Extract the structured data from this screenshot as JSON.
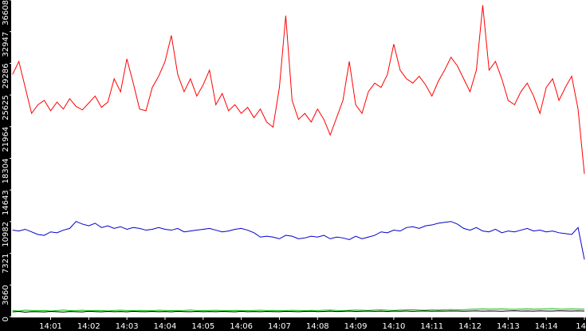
{
  "chart_data": {
    "type": "line",
    "categories": [
      null,
      null,
      null,
      null,
      null,
      null,
      "14:01",
      null,
      null,
      null,
      null,
      null,
      "14:02",
      null,
      null,
      null,
      null,
      null,
      "14:03",
      null,
      null,
      null,
      null,
      null,
      "14:04",
      null,
      null,
      null,
      null,
      null,
      "14:05",
      null,
      null,
      null,
      null,
      null,
      "14:06",
      null,
      null,
      null,
      null,
      null,
      "14:07",
      null,
      null,
      null,
      null,
      null,
      "14:08",
      null,
      null,
      null,
      null,
      null,
      "14:09",
      null,
      null,
      null,
      null,
      null,
      "14:10",
      null,
      null,
      null,
      null,
      null,
      "14:11",
      null,
      null,
      null,
      null,
      null,
      "14:12",
      null,
      null,
      null,
      null,
      null,
      "14:13",
      null,
      null,
      null,
      null,
      null,
      "14:14",
      null,
      null,
      null,
      null,
      null,
      "14"
    ],
    "series": [
      {
        "color": "#ff0000",
        "values": [
          28000,
          29500,
          26500,
          23500,
          24500,
          25000,
          23800,
          24800,
          24000,
          25200,
          24300,
          23900,
          24700,
          25500,
          24200,
          24800,
          27500,
          26000,
          29800,
          27000,
          24000,
          23800,
          26500,
          27800,
          29500,
          32500,
          28000,
          26000,
          27500,
          25500,
          26800,
          28500,
          24500,
          25800,
          23800,
          24500,
          23500,
          24200,
          23000,
          24000,
          22500,
          21900,
          26500,
          34800,
          25000,
          22800,
          23500,
          22500,
          24000,
          22800,
          21000,
          23000,
          25000,
          29500,
          24500,
          23500,
          26000,
          27000,
          26500,
          28000,
          31500,
          28500,
          27500,
          27000,
          27800,
          26800,
          25500,
          27200,
          28500,
          30000,
          29000,
          27500,
          26000,
          28500,
          36000,
          28500,
          29500,
          27500,
          25000,
          24500,
          26000,
          27000,
          25500,
          23500,
          26500,
          27500,
          25000,
          26500,
          27800,
          24000,
          16500
        ]
      },
      {
        "color": "#0000cc",
        "values": [
          10000,
          9900,
          10100,
          9800,
          9500,
          9400,
          9800,
          9700,
          10000,
          10200,
          11000,
          10700,
          10500,
          10800,
          10300,
          10500,
          10200,
          10400,
          10100,
          10300,
          10200,
          10000,
          10100,
          10300,
          10100,
          10000,
          10200,
          9800,
          9900,
          10000,
          10100,
          10200,
          10000,
          9800,
          9900,
          10100,
          10200,
          10000,
          9700,
          9200,
          9300,
          9200,
          9000,
          9400,
          9300,
          9000,
          9100,
          9300,
          9200,
          9400,
          9000,
          9200,
          9100,
          8900,
          9300,
          9000,
          9200,
          9400,
          9800,
          9700,
          10000,
          9900,
          10300,
          10400,
          10200,
          10500,
          10600,
          10800,
          10900,
          11000,
          10700,
          10200,
          10000,
          10300,
          9900,
          9800,
          10100,
          9700,
          9900,
          9800,
          10000,
          10200,
          9900,
          10000,
          9800,
          9900,
          9700,
          9600,
          9500,
          10300,
          6600
        ]
      },
      {
        "color": "#00c000",
        "values": [
          700,
          650,
          750,
          700,
          680,
          720,
          650,
          700,
          760,
          690,
          700,
          740,
          680,
          720,
          700,
          660,
          710,
          740,
          700,
          690,
          720,
          700,
          680,
          740,
          710,
          690,
          700,
          720,
          760,
          700,
          690,
          710,
          730,
          700,
          680,
          720,
          700,
          690,
          710,
          740,
          700,
          720,
          690,
          700,
          730,
          710,
          690,
          720,
          700,
          740,
          760,
          720,
          700,
          730,
          760,
          740,
          720,
          760,
          780,
          740,
          720,
          760,
          780,
          800,
          760,
          740,
          780,
          760,
          800,
          820,
          780,
          800,
          840,
          880,
          900,
          860,
          880,
          900,
          860,
          840,
          880,
          900,
          860,
          880,
          900,
          920,
          880,
          860,
          900,
          880,
          860
        ]
      },
      {
        "color": "#000000",
        "values": [
          550,
          600,
          520,
          580,
          560,
          540,
          600,
          570,
          530,
          590,
          560,
          540,
          620,
          580,
          550,
          600,
          570,
          590,
          550,
          610,
          580,
          560,
          600,
          570,
          590,
          550,
          610,
          580,
          560,
          600,
          570,
          590,
          560,
          600,
          580,
          550,
          610,
          570,
          590,
          560,
          600,
          580,
          560,
          610,
          590,
          570,
          600,
          620,
          580,
          600,
          630,
          590,
          610,
          640,
          600,
          620,
          650,
          610,
          630,
          600,
          640,
          620,
          650,
          610,
          640,
          660,
          620,
          650,
          630,
          660,
          640,
          620,
          650,
          670,
          630,
          660,
          640,
          620,
          660,
          680,
          640,
          660,
          630,
          670,
          650,
          640,
          680,
          660,
          640,
          670,
          650
        ]
      }
    ],
    "ylim": [
      0,
      36608
    ],
    "yticks": [
      0,
      3660,
      7321,
      10982,
      14643,
      18304,
      21964,
      25625,
      29286,
      32947,
      36608
    ]
  }
}
